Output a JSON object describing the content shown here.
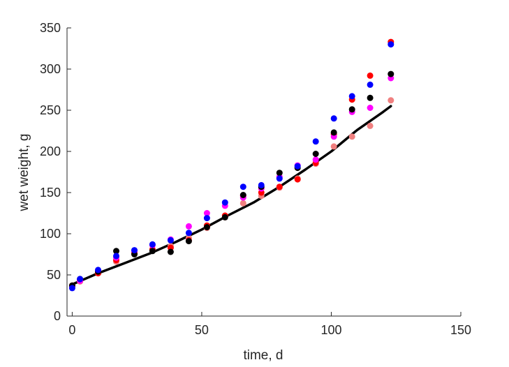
{
  "chart_data": {
    "type": "scatter",
    "title": "",
    "xlabel": "time, d",
    "ylabel": "wet weight, g",
    "xlim": [
      -2,
      150
    ],
    "ylim": [
      0,
      350
    ],
    "xticks": [
      0,
      50,
      100,
      150
    ],
    "yticks": [
      0,
      50,
      100,
      150,
      200,
      250,
      300,
      350
    ],
    "grid": false,
    "legend": "none",
    "x": [
      0,
      3,
      10,
      17,
      24,
      31,
      38,
      45,
      52,
      59,
      66,
      73,
      80,
      87,
      94,
      101,
      108,
      115,
      123
    ],
    "series": [
      {
        "color": "#F08080",
        "values": [
          36,
          42,
          52,
          66,
          76,
          80,
          85,
          95,
          107,
          120,
          137,
          146,
          156,
          167,
          185,
          206,
          218,
          231,
          262
        ]
      },
      {
        "color": "#FF0000",
        "values": [
          37,
          43,
          52,
          68,
          77,
          81,
          83,
          92,
          110,
          122,
          146,
          150,
          157,
          166,
          186,
          221,
          263,
          292,
          333
        ]
      },
      {
        "color": "#FF00FF",
        "values": [
          35,
          43,
          55,
          71,
          79,
          86,
          93,
          109,
          125,
          134,
          144,
          155,
          169,
          183,
          190,
          218,
          248,
          253,
          289
        ]
      },
      {
        "color": "#000000",
        "values": [
          37,
          45,
          54,
          79,
          75,
          79,
          78,
          91,
          108,
          120,
          147,
          157,
          174,
          180,
          197,
          223,
          251,
          265,
          294
        ]
      },
      {
        "color": "#0000FF",
        "values": [
          34,
          45,
          56,
          73,
          80,
          87,
          92,
          101,
          119,
          138,
          157,
          159,
          167,
          182,
          212,
          240,
          267,
          281,
          330
        ]
      }
    ],
    "fit": {
      "color": "#000000",
      "x": [
        0,
        10,
        20,
        30,
        40,
        50,
        60,
        70,
        80,
        90,
        100,
        110,
        120,
        123
      ],
      "values": [
        38.5,
        52,
        64,
        76,
        90,
        105,
        122,
        138,
        157,
        178,
        200,
        226,
        248,
        255
      ]
    }
  }
}
